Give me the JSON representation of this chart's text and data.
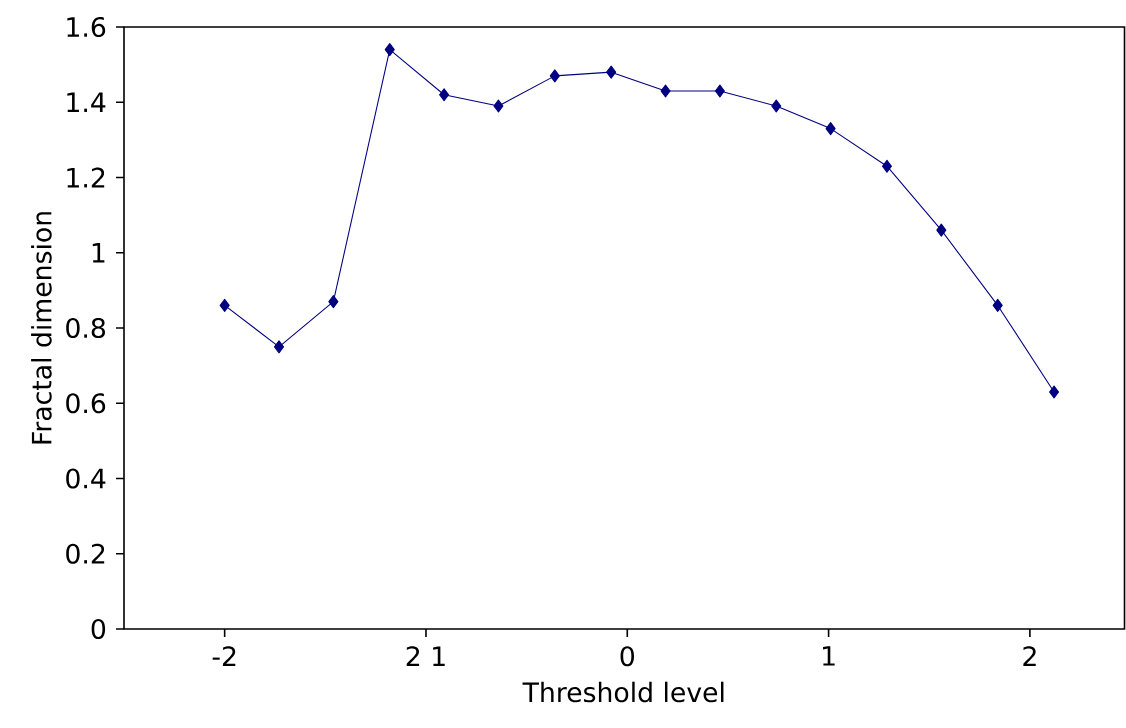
{
  "chart_data": {
    "type": "line",
    "xlabel": "Threshold level",
    "ylabel": "Fractal dimension",
    "x": [
      -2.0,
      -1.73,
      -1.46,
      -1.18,
      -0.91,
      -0.64,
      -0.36,
      -0.08,
      0.19,
      0.46,
      0.74,
      1.01,
      1.29,
      1.56,
      1.84,
      2.12
    ],
    "values": [
      0.86,
      0.75,
      0.87,
      1.54,
      1.42,
      1.39,
      1.47,
      1.48,
      1.43,
      1.43,
      1.39,
      1.33,
      1.23,
      1.06,
      0.86,
      0.63
    ],
    "color": "#000080",
    "marker": "diamond",
    "line_style": "solid",
    "grid": false,
    "xlim": [
      -2.5,
      2.47
    ],
    "ylim": [
      0,
      1.6
    ],
    "xticks": [
      -2,
      {
        "value": -1,
        "label": "2 1"
      },
      0,
      1,
      2
    ],
    "yticks": [
      0,
      0.2,
      0.4,
      0.6,
      0.8,
      1,
      1.2,
      1.4,
      1.6
    ]
  }
}
